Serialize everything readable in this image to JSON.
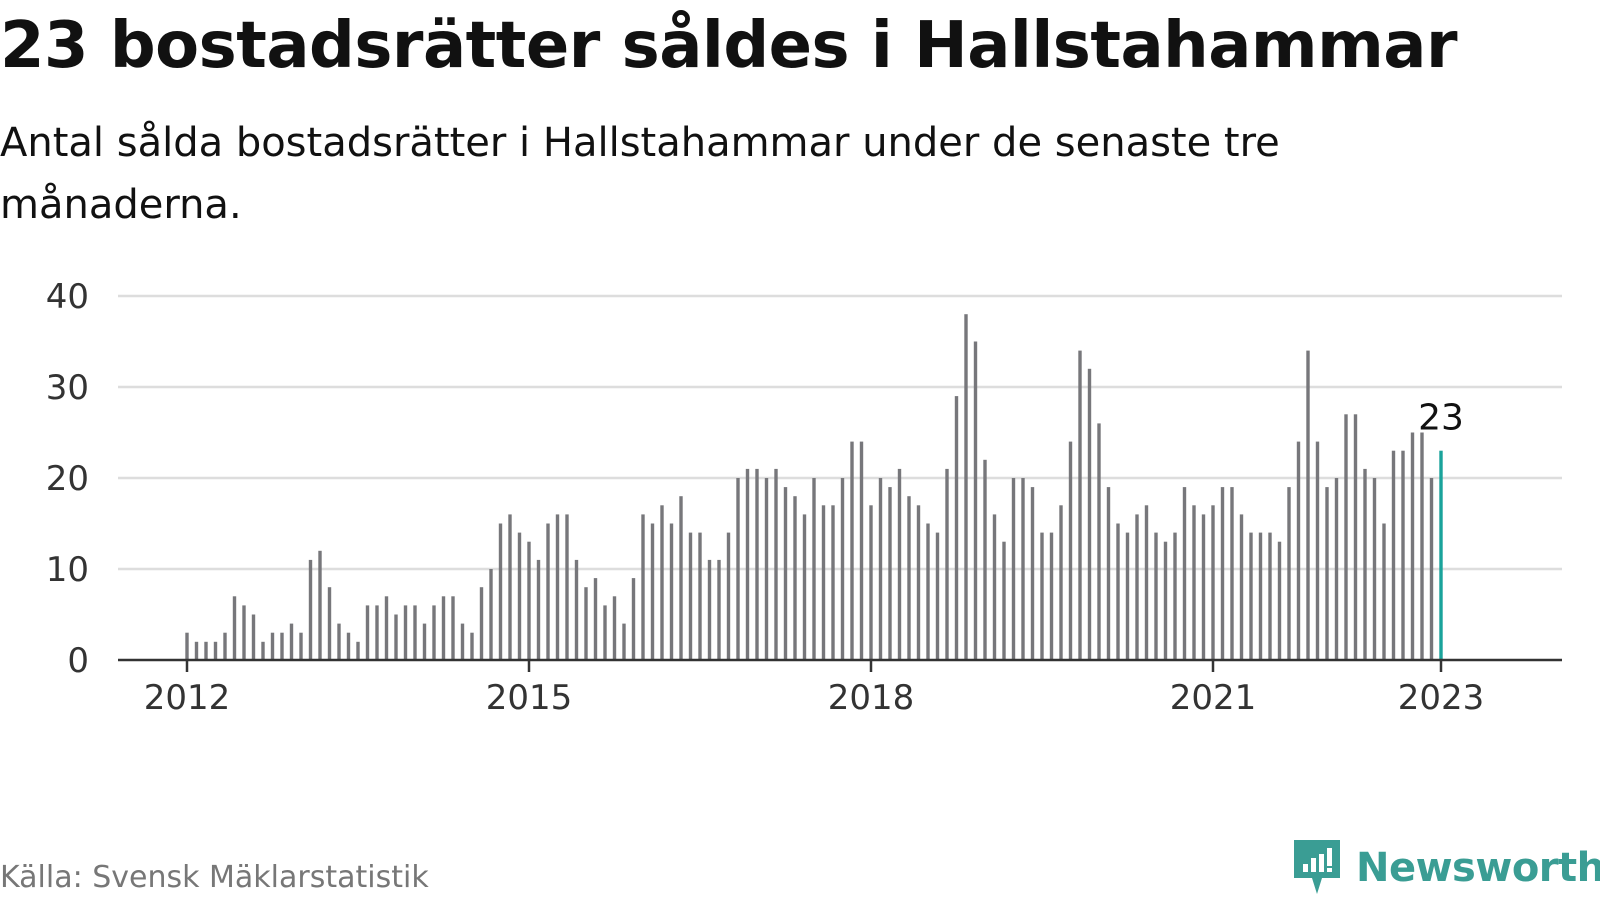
{
  "header": {
    "title": "23 bostadsrätter såldes i Hallstahammar",
    "subtitle": "Antal sålda bostadsrätter i Hallstahammar under de senaste tre månaderna."
  },
  "footer": {
    "source": "Källa: Svensk Mäklarstatistik",
    "brand": "Newsworthy"
  },
  "colors": {
    "bar": "#77777b",
    "highlight": "#1aa39b",
    "grid": "#dddddd",
    "axis": "#333333",
    "brand": "#3a9d94"
  },
  "chart_data": {
    "type": "bar",
    "x_start": "2012-01",
    "x_unit": "month",
    "ylim": [
      0,
      40
    ],
    "yticks": [
      0,
      10,
      20,
      30,
      40
    ],
    "xtick_labels": [
      "2012",
      "2015",
      "2018",
      "2021",
      "2023"
    ],
    "grid": true,
    "highlight_label": "23",
    "values": [
      3,
      2,
      2,
      2,
      3,
      7,
      6,
      5,
      2,
      3,
      3,
      4,
      3,
      11,
      12,
      8,
      4,
      3,
      2,
      6,
      6,
      7,
      5,
      6,
      6,
      4,
      6,
      7,
      7,
      4,
      3,
      8,
      10,
      15,
      16,
      14,
      13,
      11,
      15,
      16,
      16,
      11,
      8,
      9,
      6,
      7,
      4,
      9,
      16,
      15,
      17,
      15,
      18,
      14,
      14,
      11,
      11,
      14,
      20,
      21,
      21,
      20,
      21,
      19,
      18,
      16,
      20,
      17,
      17,
      20,
      24,
      24,
      17,
      20,
      19,
      21,
      18,
      17,
      15,
      14,
      21,
      29,
      38,
      35,
      22,
      16,
      13,
      20,
      20,
      19,
      14,
      14,
      17,
      24,
      34,
      32,
      26,
      19,
      15,
      14,
      16,
      17,
      14,
      13,
      14,
      19,
      17,
      16,
      17,
      19,
      19,
      16,
      14,
      14,
      14,
      13,
      19,
      24,
      34,
      24,
      19,
      20,
      27,
      27,
      21,
      20,
      15,
      23,
      23,
      25,
      25,
      20,
      23
    ]
  }
}
